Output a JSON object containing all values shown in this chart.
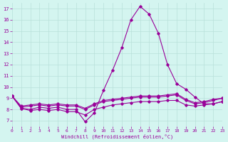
{
  "xlabel": "Windchill (Refroidissement éolien,°C)",
  "background_color": "#d4f5f0",
  "grid_color": "#b8e0da",
  "line_color": "#990099",
  "xlim": [
    0,
    23
  ],
  "ylim": [
    6.5,
    17.5
  ],
  "xticks": [
    0,
    1,
    2,
    3,
    4,
    5,
    6,
    7,
    8,
    9,
    10,
    11,
    12,
    13,
    14,
    15,
    16,
    17,
    18,
    19,
    20,
    21,
    22,
    23
  ],
  "yticks": [
    7,
    8,
    9,
    10,
    11,
    12,
    13,
    14,
    15,
    16,
    17
  ],
  "line1_x": [
    0,
    1,
    2,
    3,
    4,
    5,
    6,
    7,
    8,
    9,
    10,
    11,
    12,
    13,
    14,
    15,
    16,
    17,
    18,
    19,
    20,
    21,
    22,
    23
  ],
  "line1_y": [
    9.2,
    8.1,
    8.0,
    8.2,
    8.1,
    8.2,
    8.0,
    8.0,
    6.9,
    7.7,
    9.7,
    11.5,
    13.5,
    16.0,
    17.2,
    16.5,
    14.8,
    12.0,
    10.3,
    9.8,
    9.1,
    8.5,
    8.5,
    8.7
  ],
  "line2_x": [
    0,
    1,
    2,
    3,
    4,
    5,
    6,
    7,
    8,
    9,
    10,
    11,
    12,
    13,
    14,
    15,
    16,
    17,
    18,
    19,
    20,
    21,
    22,
    23
  ],
  "line2_y": [
    9.2,
    8.2,
    8.3,
    8.4,
    8.3,
    8.4,
    8.3,
    8.3,
    8.0,
    8.4,
    8.7,
    8.8,
    8.9,
    9.0,
    9.1,
    9.1,
    9.1,
    9.2,
    9.3,
    8.8,
    8.5,
    8.6,
    8.8,
    9.0
  ],
  "line3_x": [
    0,
    1,
    2,
    3,
    4,
    5,
    6,
    7,
    8,
    9,
    10,
    11,
    12,
    13,
    14,
    15,
    16,
    17,
    18,
    19,
    20,
    21,
    22,
    23
  ],
  "line3_y": [
    9.2,
    8.1,
    7.9,
    8.0,
    7.9,
    8.0,
    7.8,
    7.8,
    7.5,
    8.0,
    8.2,
    8.4,
    8.5,
    8.6,
    8.7,
    8.7,
    8.7,
    8.8,
    8.8,
    8.4,
    8.3,
    8.4,
    8.5,
    8.7
  ],
  "line4_x": [
    0,
    1,
    2,
    3,
    4,
    5,
    6,
    7,
    8,
    9,
    10,
    11,
    12,
    13,
    14,
    15,
    16,
    17,
    18,
    19,
    20,
    21,
    22,
    23
  ],
  "line4_y": [
    9.2,
    8.3,
    8.4,
    8.5,
    8.4,
    8.5,
    8.4,
    8.4,
    8.1,
    8.5,
    8.8,
    8.9,
    9.0,
    9.1,
    9.2,
    9.2,
    9.2,
    9.3,
    9.4,
    8.9,
    8.6,
    8.7,
    8.9,
    9.0
  ]
}
